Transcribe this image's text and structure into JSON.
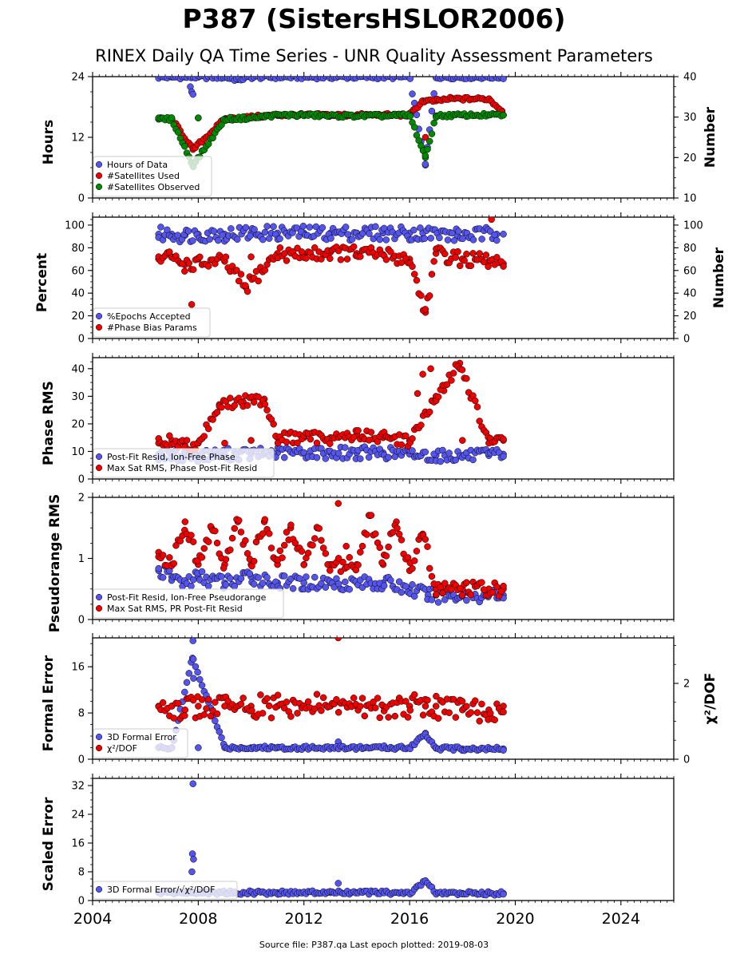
{
  "page": {
    "title": "P387 (SistersHSLOR2006)",
    "subtitle": "RINEX Daily QA Time Series - UNR Quality Assessment Parameters",
    "footer": "Source file: P387.qa Last epoch plotted: 2019-08-03"
  },
  "chart_data": [
    {
      "type": "scatter",
      "panel": "hours-satellites",
      "ylabel": "Hours",
      "y2label": "Number",
      "ylim": [
        0,
        24
      ],
      "yticks": [
        0,
        12,
        24
      ],
      "y2lim": [
        10,
        40
      ],
      "y2ticks": [
        10,
        20,
        30,
        40
      ],
      "xlim": [
        2004,
        2026
      ],
      "xticks": [
        "2004",
        "2008",
        "2012",
        "2016",
        "2020",
        "2024"
      ],
      "legend_position": "lower-left",
      "series": [
        {
          "name": "Hours of Data",
          "axis": "left",
          "color": "#5555ee",
          "x": [
            2006.5,
            2007.0,
            2007.5,
            2008.0,
            2009.0,
            2010.0,
            2011.0,
            2012.0,
            2013.0,
            2014.0,
            2015.0,
            2016.0,
            2017.0,
            2018.0,
            2019.0,
            2019.55,
            2007.7,
            2007.75,
            2007.8,
            2016.6,
            2009.5
          ],
          "y": [
            23.9,
            23.9,
            23.9,
            23.9,
            23.9,
            23.9,
            23.9,
            23.9,
            23.9,
            23.9,
            23.9,
            23.9,
            23.9,
            23.9,
            23.9,
            23.9,
            22.0,
            21.0,
            20.5,
            6.5,
            23.4
          ]
        },
        {
          "name": "#Satellites Used",
          "axis": "right",
          "color": "#ee0000",
          "x": [
            2006.5,
            2007.0,
            2008.0,
            2009.0,
            2010.0,
            2011.0,
            2012.0,
            2013.0,
            2014.0,
            2015.0,
            2016.0,
            2016.5,
            2017.0,
            2017.5,
            2018.0,
            2018.5,
            2019.0,
            2019.5,
            2007.8,
            2016.6
          ],
          "y": [
            29.5,
            29.5,
            29.8,
            29.5,
            30.0,
            30.5,
            30.5,
            30.5,
            30.5,
            30.5,
            30.5,
            34.0,
            34.0,
            34.5,
            34.5,
            34.5,
            34.5,
            31.5,
            22.0,
            25.0
          ]
        },
        {
          "name": "#Satellites Observed",
          "axis": "right",
          "color": "#008800",
          "x": [
            2006.5,
            2007.0,
            2008.0,
            2009.0,
            2010.0,
            2011.0,
            2012.0,
            2013.0,
            2014.0,
            2015.0,
            2016.0,
            2017.0,
            2018.0,
            2019.0,
            2019.55,
            2007.8,
            2016.6
          ],
          "y": [
            29.5,
            29.5,
            29.8,
            29.5,
            29.8,
            30.5,
            30.5,
            30.3,
            30.3,
            30.3,
            30.5,
            30.3,
            30.5,
            30.5,
            30.5,
            18.0,
            20.0
          ]
        }
      ]
    },
    {
      "type": "scatter",
      "panel": "percent-phase-bias",
      "ylabel": "Percent",
      "y2label": "Number",
      "ylim": [
        0,
        107
      ],
      "yticks": [
        0,
        20,
        40,
        60,
        80,
        100
      ],
      "y2ticks": [
        0,
        20,
        40,
        60,
        80,
        100
      ],
      "xlim": [
        2004,
        2026
      ],
      "legend_position": "lower-left",
      "series": [
        {
          "name": "%Epochs Accepted",
          "axis": "left",
          "color": "#5555ee",
          "x": [
            2006.5,
            2007.0,
            2007.5,
            2008.0,
            2009.0,
            2010.0,
            2011.0,
            2012.0,
            2013.0,
            2014.0,
            2015.0,
            2016.0,
            2016.5,
            2017.8,
            2019.3,
            2019.55
          ],
          "y": [
            92,
            92,
            91,
            92,
            92,
            93,
            93,
            93,
            93,
            93,
            93,
            93,
            93,
            91,
            92,
            92
          ]
        },
        {
          "name": "#Phase Bias Params",
          "axis": "right",
          "color": "#ee0000",
          "x": [
            2006.5,
            2007.0,
            2007.5,
            2007.75,
            2008.0,
            2009.0,
            2009.8,
            2010.0,
            2011.0,
            2012.0,
            2013.0,
            2014.0,
            2015.0,
            2016.0,
            2016.6,
            2017.0,
            2018.0,
            2019.0,
            2019.1,
            2019.55
          ],
          "y": [
            70,
            72,
            65,
            30,
            70,
            68,
            45,
            72,
            75,
            74,
            76,
            75,
            74,
            70,
            23,
            75,
            70,
            68,
            105,
            66
          ]
        }
      ]
    },
    {
      "type": "scatter",
      "panel": "phase-rms",
      "ylabel": "Phase RMS",
      "ylim": [
        0,
        44
      ],
      "yticks": [
        0,
        10,
        20,
        30,
        40
      ],
      "xlim": [
        2004,
        2026
      ],
      "legend_position": "lower-left",
      "series": [
        {
          "name": "Post-Fit Resid, Ion-Free Phase",
          "color": "#5555ee",
          "x": [
            2006.5,
            2007.0,
            2008.0,
            2009.0,
            2010.0,
            2011.0,
            2012.0,
            2013.0,
            2014.0,
            2015.0,
            2016.0,
            2017.0,
            2018.0,
            2019.0,
            2019.55
          ],
          "y": [
            9,
            8.5,
            8.5,
            9,
            9,
            9.5,
            9.5,
            9.5,
            9.5,
            9.5,
            9,
            8.5,
            8.5,
            8.5,
            9
          ]
        },
        {
          "name": "Max Sat RMS, Phase Post-Fit Resid",
          "color": "#ee0000",
          "x": [
            2006.5,
            2007.0,
            2007.5,
            2008.0,
            2008.8,
            2009.0,
            2009.7,
            2010.0,
            2010.5,
            2011.0,
            2012.0,
            2013.0,
            2014.0,
            2015.0,
            2016.0,
            2016.3,
            2016.5,
            2016.8,
            2017.0,
            2017.3,
            2017.9,
            2018.0,
            2019.0,
            2019.55
          ],
          "y": [
            13,
            14,
            12,
            13,
            27,
            13,
            28,
            14,
            29,
            15,
            15,
            15,
            16,
            15,
            14,
            31,
            38,
            40,
            30,
            32,
            42,
            14,
            13,
            14
          ]
        }
      ]
    },
    {
      "type": "scatter",
      "panel": "pseudorange-rms",
      "ylabel": "Pseudorange RMS",
      "ylim": [
        0,
        2
      ],
      "yticks": [
        0,
        1,
        2
      ],
      "xlim": [
        2004,
        2026
      ],
      "legend_position": "lower-left",
      "series": [
        {
          "name": "Post-Fit Resid, Ion-Free Pseudorange",
          "color": "#5555ee",
          "x": [
            2006.5,
            2007.0,
            2007.5,
            2008.0,
            2009.0,
            2010.0,
            2011.0,
            2012.0,
            2013.0,
            2014.0,
            2015.0,
            2016.0,
            2016.7,
            2017.0,
            2018.0,
            2019.0,
            2019.55
          ],
          "y": [
            0.8,
            0.7,
            0.6,
            0.7,
            0.6,
            0.7,
            0.6,
            0.6,
            0.6,
            0.6,
            0.6,
            0.5,
            0.4,
            0.4,
            0.4,
            0.4,
            0.4
          ]
        },
        {
          "name": "Max Sat RMS, PR Post-Fit Resid",
          "color": "#ee0000",
          "x": [
            2006.5,
            2007.0,
            2007.5,
            2008.0,
            2008.5,
            2009.0,
            2009.5,
            2010.0,
            2010.5,
            2011.0,
            2011.5,
            2012.0,
            2012.5,
            2013.0,
            2013.3,
            2013.6,
            2014.0,
            2014.5,
            2015.0,
            2015.5,
            2016.0,
            2016.5,
            2017.0,
            2018.0,
            2019.0,
            2019.55
          ],
          "y": [
            1.1,
            0.9,
            1.6,
            0.9,
            1.5,
            0.9,
            1.6,
            0.9,
            1.6,
            0.9,
            1.5,
            0.9,
            1.5,
            0.9,
            1.9,
            1.2,
            0.9,
            1.7,
            0.9,
            1.6,
            0.8,
            1.4,
            0.5,
            0.5,
            0.5,
            0.5
          ]
        }
      ]
    },
    {
      "type": "scatter",
      "panel": "formal-error",
      "ylabel": "Formal Error",
      "y2label": "χ²/DOF",
      "ylim": [
        0,
        21
      ],
      "yticks": [
        0,
        8,
        16
      ],
      "y2ticks": [
        0,
        2
      ],
      "xlim": [
        2004,
        2026
      ],
      "legend_position": "lower-left",
      "series": [
        {
          "name": "3D Formal Error",
          "axis": "left",
          "color": "#5555ee",
          "x": [
            2006.5,
            2007.0,
            2008.0,
            2009.0,
            2010.0,
            2011.0,
            2012.0,
            2013.0,
            2014.0,
            2015.0,
            2016.0,
            2017.0,
            2018.0,
            2019.0,
            2019.55,
            2007.8,
            2007.78,
            2007.82,
            2016.6,
            2013.3
          ],
          "y": [
            2.0,
            2.0,
            2.0,
            2.0,
            2.0,
            2.0,
            2.0,
            2.0,
            2.0,
            2.0,
            2.0,
            1.9,
            1.8,
            1.8,
            1.8,
            20.5,
            17.5,
            14.0,
            4.5,
            3.0
          ]
        },
        {
          "name": "χ²/DOF",
          "axis": "right",
          "color": "#ee0000",
          "x": [
            2006.5,
            2007.0,
            2007.5,
            2008.0,
            2009.0,
            2010.0,
            2011.0,
            2012.0,
            2013.0,
            2013.3,
            2014.0,
            2015.0,
            2016.0,
            2016.6,
            2017.0,
            2018.0,
            2019.0,
            2019.55
          ],
          "y": [
            1.4,
            1.4,
            1.3,
            1.4,
            1.4,
            1.4,
            1.4,
            1.4,
            1.4,
            3.2,
            1.4,
            1.4,
            1.4,
            1.4,
            1.4,
            1.3,
            1.3,
            1.4
          ]
        }
      ]
    },
    {
      "type": "scatter",
      "panel": "scaled-error",
      "ylabel": "Scaled Error",
      "ylim": [
        0,
        34
      ],
      "yticks": [
        0,
        8,
        16,
        24,
        32
      ],
      "xlim": [
        2004,
        2026
      ],
      "xticks": [
        "2004",
        "2008",
        "2012",
        "2016",
        "2020",
        "2024"
      ],
      "legend_position": "lower-left",
      "series": [
        {
          "name": "3D Formal Error/√χ²/DOF",
          "color": "#5555ee",
          "x": [
            2006.5,
            2007.0,
            2007.5,
            2007.8,
            2007.78,
            2007.82,
            2007.76,
            2008.0,
            2009.0,
            2010.0,
            2011.0,
            2012.0,
            2013.0,
            2013.3,
            2014.0,
            2015.0,
            2016.0,
            2016.6,
            2017.0,
            2018.0,
            2019.0,
            2019.55
          ],
          "y": [
            2.2,
            2.2,
            2.2,
            32.5,
            13.0,
            11.5,
            8.0,
            2.2,
            2.2,
            2.2,
            2.2,
            2.2,
            2.2,
            4.8,
            2.2,
            2.2,
            2.0,
            5.5,
            2.0,
            2.0,
            2.0,
            2.0
          ]
        }
      ]
    }
  ]
}
